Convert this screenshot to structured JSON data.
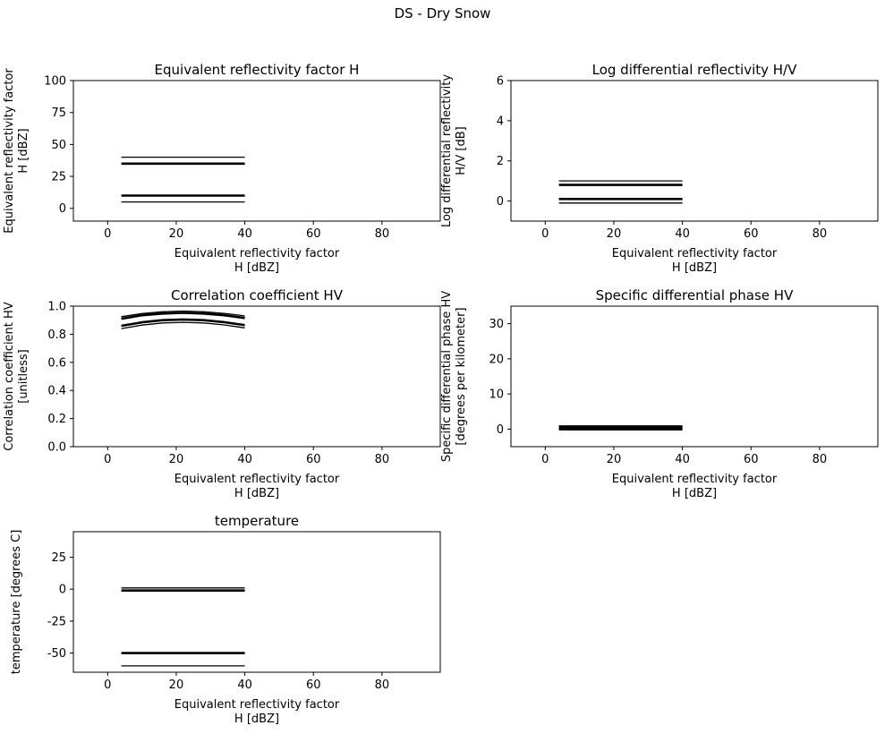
{
  "figure_title": "DS - Dry Snow",
  "chart_data": [
    {
      "type": "line",
      "title": "Equivalent reflectivity factor H",
      "xlabel": [
        "Equivalent reflectivity factor",
        "H [dBZ]"
      ],
      "ylabel": [
        "Equivalent reflectivity factor",
        "H [dBZ]"
      ],
      "xlim": [
        -10,
        97
      ],
      "ylim": [
        -10,
        100
      ],
      "xticks": [
        0,
        20,
        40,
        60,
        80
      ],
      "yticks": [
        0,
        25,
        50,
        75,
        100
      ],
      "grid": false,
      "series": [
        {
          "style": "thin",
          "x": [
            4,
            40
          ],
          "y": [
            5,
            5
          ]
        },
        {
          "style": "thick",
          "x": [
            4,
            40
          ],
          "y": [
            10,
            10
          ]
        },
        {
          "style": "thick",
          "x": [
            4,
            40
          ],
          "y": [
            35,
            35
          ]
        },
        {
          "style": "thin",
          "x": [
            4,
            40
          ],
          "y": [
            40,
            40
          ]
        }
      ]
    },
    {
      "type": "line",
      "title": "Log differential reflectivity H/V",
      "xlabel": [
        "Equivalent reflectivity factor",
        "H [dBZ]"
      ],
      "ylabel": [
        "Log differential reflectivity",
        "H/V [dB]"
      ],
      "xlim": [
        -10,
        97
      ],
      "ylim": [
        -1,
        6
      ],
      "xticks": [
        0,
        20,
        40,
        60,
        80
      ],
      "yticks": [
        0,
        2,
        4,
        6
      ],
      "grid": false,
      "series": [
        {
          "style": "thin",
          "x": [
            4,
            40
          ],
          "y": [
            -0.1,
            -0.1
          ]
        },
        {
          "style": "thick",
          "x": [
            4,
            40
          ],
          "y": [
            0.1,
            0.1
          ]
        },
        {
          "style": "thick",
          "x": [
            4,
            40
          ],
          "y": [
            0.8,
            0.8
          ]
        },
        {
          "style": "thin",
          "x": [
            4,
            40
          ],
          "y": [
            1.0,
            1.0
          ]
        }
      ]
    },
    {
      "type": "line",
      "title": "Correlation coefficient HV",
      "xlabel": [
        "Equivalent reflectivity factor",
        "H [dBZ]"
      ],
      "ylabel": [
        "Correlation coefficient HV",
        "[unitless]"
      ],
      "xlim": [
        -10,
        97
      ],
      "ylim": [
        0,
        1.0
      ],
      "xticks": [
        0,
        20,
        40,
        60,
        80
      ],
      "yticks": [
        0.0,
        0.2,
        0.4,
        0.6,
        0.8,
        1.0
      ],
      "ytick_labels": [
        "0.0",
        "0.2",
        "0.4",
        "0.6",
        "0.8",
        "1.0"
      ],
      "grid": false,
      "series": [
        {
          "style": "thin",
          "x": [
            4,
            10,
            16,
            22,
            28,
            34,
            38,
            40
          ],
          "y": [
            0.84,
            0.865,
            0.88,
            0.885,
            0.88,
            0.866,
            0.852,
            0.845
          ]
        },
        {
          "style": "thick",
          "x": [
            4,
            10,
            16,
            22,
            28,
            34,
            38,
            40
          ],
          "y": [
            0.86,
            0.885,
            0.9,
            0.905,
            0.9,
            0.886,
            0.872,
            0.865
          ]
        },
        {
          "style": "thick",
          "x": [
            4,
            10,
            16,
            22,
            28,
            34,
            38,
            40
          ],
          "y": [
            0.91,
            0.935,
            0.947,
            0.952,
            0.947,
            0.935,
            0.922,
            0.915
          ]
        },
        {
          "style": "thin",
          "x": [
            4,
            10,
            16,
            22,
            28,
            34,
            38,
            40
          ],
          "y": [
            0.925,
            0.947,
            0.96,
            0.965,
            0.96,
            0.948,
            0.937,
            0.93
          ]
        }
      ]
    },
    {
      "type": "line",
      "title": "Specific differential phase HV",
      "xlabel": [
        "Equivalent reflectivity factor",
        "H [dBZ]"
      ],
      "ylabel": [
        "Specific differential phase HV",
        "[degrees per kilometer]"
      ],
      "xlim": [
        -10,
        97
      ],
      "ylim": [
        -5,
        35
      ],
      "xticks": [
        0,
        20,
        40,
        60,
        80
      ],
      "yticks": [
        0,
        10,
        20,
        30
      ],
      "grid": false,
      "series": [
        {
          "style": "thin",
          "x": [
            4,
            40
          ],
          "y": [
            -0.2,
            -0.2
          ]
        },
        {
          "style": "thick",
          "x": [
            4,
            40
          ],
          "y": [
            0.3,
            0.3
          ]
        },
        {
          "style": "thick",
          "x": [
            4,
            40
          ],
          "y": [
            0.6,
            0.6
          ]
        },
        {
          "style": "thin",
          "x": [
            4,
            40
          ],
          "y": [
            0.9,
            0.9
          ]
        }
      ]
    },
    {
      "type": "line",
      "title": "temperature",
      "xlabel": [
        "Equivalent reflectivity factor",
        "H [dBZ]"
      ],
      "ylabel": [
        "temperature [degrees C]"
      ],
      "xlim": [
        -10,
        97
      ],
      "ylim": [
        -65,
        45
      ],
      "xticks": [
        0,
        20,
        40,
        60,
        80
      ],
      "yticks": [
        -50,
        -25,
        0,
        25
      ],
      "grid": false,
      "series": [
        {
          "style": "thin",
          "x": [
            4,
            40
          ],
          "y": [
            -60,
            -60
          ]
        },
        {
          "style": "thick",
          "x": [
            4,
            40
          ],
          "y": [
            -50,
            -50
          ]
        },
        {
          "style": "thick",
          "x": [
            4,
            40
          ],
          "y": [
            -1,
            -1
          ]
        },
        {
          "style": "thin",
          "x": [
            4,
            40
          ],
          "y": [
            1,
            1
          ]
        }
      ]
    }
  ]
}
